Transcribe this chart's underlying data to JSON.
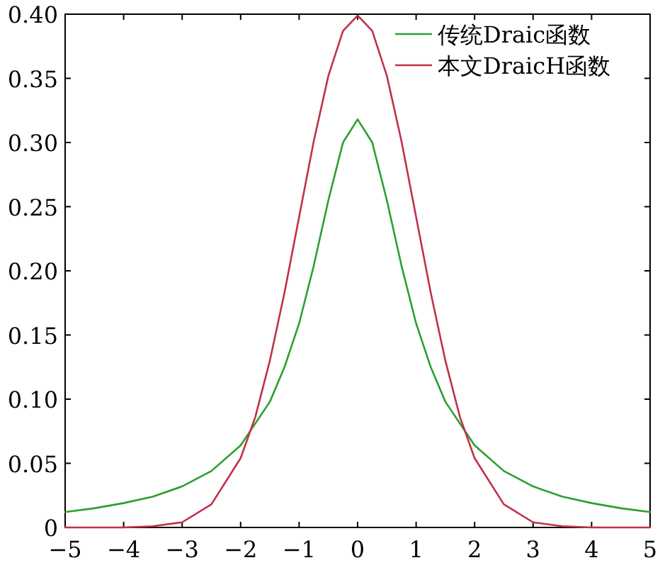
{
  "chart_data": {
    "type": "line",
    "xlim": [
      -5,
      5
    ],
    "ylim": [
      0,
      0.4
    ],
    "xticks": [
      -5,
      -4,
      -3,
      -2,
      -1,
      0,
      1,
      2,
      3,
      4,
      5
    ],
    "yticks": [
      0,
      {
        "value": 0.05,
        "label": "0.05"
      },
      {
        "value": 0.1,
        "label": "0.10"
      },
      {
        "value": 0.15,
        "label": "0.15"
      },
      {
        "value": 0.2,
        "label": "0.20"
      },
      {
        "value": 0.25,
        "label": "0.25"
      },
      {
        "value": 0.3,
        "label": "0.30"
      },
      {
        "value": 0.35,
        "label": "0.35"
      },
      {
        "value": 0.4,
        "label": "0.40"
      }
    ],
    "grid": false,
    "legend": "top right",
    "line_style": "solid",
    "marker": "none",
    "series": [
      {
        "name": "传统Draic函数",
        "color": "#2ca02c",
        "x": [
          -5,
          -4.5,
          -4,
          -3.5,
          -3,
          -2.5,
          -2,
          -1.5,
          -1.25,
          -1,
          -0.75,
          -0.5,
          -0.25,
          0,
          0.25,
          0.5,
          0.75,
          1,
          1.25,
          1.5,
          2,
          2.5,
          3,
          3.5,
          4,
          4.5,
          5
        ],
        "values": [
          0.012,
          0.015,
          0.019,
          0.024,
          0.032,
          0.044,
          0.064,
          0.098,
          0.125,
          0.159,
          0.204,
          0.255,
          0.3,
          0.318,
          0.3,
          0.255,
          0.204,
          0.159,
          0.125,
          0.098,
          0.064,
          0.044,
          0.032,
          0.024,
          0.019,
          0.015,
          0.012
        ]
      },
      {
        "name": "本文DraicH函数",
        "color": "#c0304a",
        "x": [
          -5,
          -4,
          -3.5,
          -3,
          -2.5,
          -2,
          -1.75,
          -1.5,
          -1.25,
          -1,
          -0.75,
          -0.5,
          -0.25,
          0,
          0.25,
          0.5,
          0.75,
          1,
          1.25,
          1.5,
          1.75,
          2,
          2.5,
          3,
          3.5,
          4,
          5
        ],
        "values": [
          0,
          0,
          0.001,
          0.004,
          0.018,
          0.054,
          0.086,
          0.13,
          0.183,
          0.242,
          0.301,
          0.352,
          0.387,
          0.399,
          0.387,
          0.352,
          0.301,
          0.242,
          0.183,
          0.13,
          0.086,
          0.054,
          0.018,
          0.004,
          0.001,
          0,
          0
        ]
      }
    ]
  }
}
